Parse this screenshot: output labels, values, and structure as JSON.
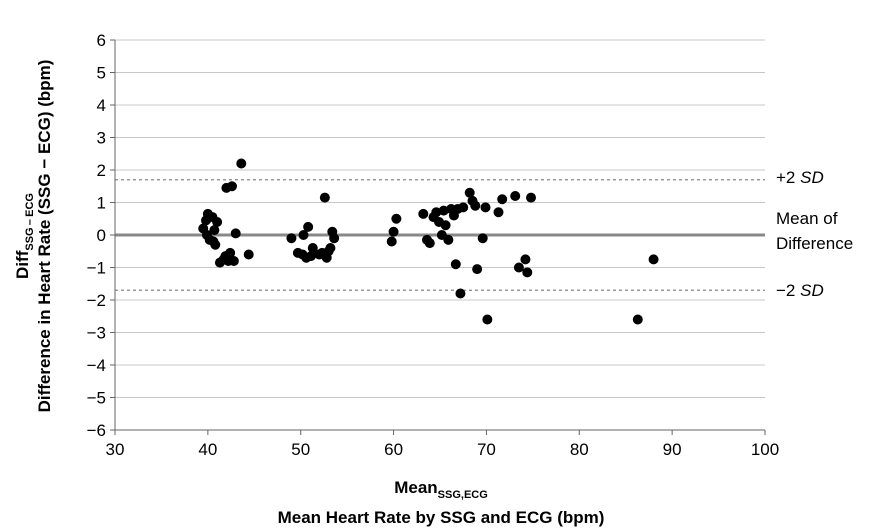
{
  "chart_data": {
    "type": "scatter",
    "xlim": [
      30,
      100
    ],
    "ylim": [
      -6,
      6
    ],
    "x_ticks": [
      "30",
      "40",
      "50",
      "60",
      "70",
      "80",
      "90",
      "100"
    ],
    "y_ticks": [
      "6",
      "5",
      "4",
      "3",
      "2",
      "1",
      "0",
      "−1",
      "−2",
      "−3",
      "−4",
      "−5",
      "−6"
    ],
    "x_title_main": "Mean",
    "x_title_sub": "SSG,ECG",
    "x_title_line2": "Mean Heart Rate by SSG and ECG (bpm)",
    "y_title_main": "Diff",
    "y_title_sub": "SSG – ECG",
    "y_title_line2": "Difference in Heart Rate (SSG − ECG) (bpm)",
    "grid": "horizontal",
    "mean_difference": 0.0,
    "upper_limit": 1.7,
    "lower_limit": -1.7,
    "upper_label_prefix": "+2 ",
    "upper_label_italic": "SD",
    "mean_label_line1": "Mean of",
    "mean_label_line2": "Difference",
    "lower_label_prefix": "−2 ",
    "lower_label_italic": "SD",
    "marker_color": "#000000",
    "limit_line_color": "#888888",
    "points": [
      [
        39.5,
        0.2
      ],
      [
        39.8,
        0.45
      ],
      [
        40.0,
        0.65
      ],
      [
        40.2,
        -0.15
      ],
      [
        40.5,
        0.55
      ],
      [
        40.7,
        0.15
      ],
      [
        40.8,
        -0.3
      ],
      [
        41.0,
        0.4
      ],
      [
        41.3,
        -0.85
      ],
      [
        41.7,
        -0.75
      ],
      [
        42.0,
        1.45
      ],
      [
        42.2,
        -0.8
      ],
      [
        42.4,
        -0.55
      ],
      [
        42.6,
        1.5
      ],
      [
        42.8,
        -0.8
      ],
      [
        43.0,
        0.05
      ],
      [
        43.6,
        2.2
      ],
      [
        44.4,
        -0.6
      ],
      [
        39.9,
        0.0
      ],
      [
        40.6,
        -0.2
      ],
      [
        41.9,
        -0.65
      ],
      [
        49.0,
        -0.1
      ],
      [
        49.7,
        -0.55
      ],
      [
        50.3,
        0.0
      ],
      [
        50.6,
        -0.7
      ],
      [
        50.8,
        0.25
      ],
      [
        51.1,
        -0.65
      ],
      [
        51.3,
        -0.4
      ],
      [
        52.0,
        -0.6
      ],
      [
        52.3,
        -0.55
      ],
      [
        52.6,
        1.15
      ],
      [
        52.8,
        -0.7
      ],
      [
        53.0,
        -0.5
      ],
      [
        53.2,
        -0.4
      ],
      [
        53.4,
        0.1
      ],
      [
        53.6,
        -0.1
      ],
      [
        50.2,
        -0.6
      ],
      [
        59.8,
        -0.2
      ],
      [
        60.0,
        0.1
      ],
      [
        60.3,
        0.5
      ],
      [
        63.2,
        0.65
      ],
      [
        63.6,
        -0.15
      ],
      [
        63.9,
        -0.25
      ],
      [
        64.3,
        0.55
      ],
      [
        64.6,
        0.7
      ],
      [
        64.9,
        0.4
      ],
      [
        65.2,
        0.0
      ],
      [
        65.4,
        0.75
      ],
      [
        65.6,
        0.3
      ],
      [
        65.9,
        -0.15
      ],
      [
        66.2,
        0.8
      ],
      [
        66.5,
        0.6
      ],
      [
        66.7,
        -0.9
      ],
      [
        66.9,
        0.8
      ],
      [
        67.2,
        -1.8
      ],
      [
        67.5,
        0.85
      ],
      [
        68.2,
        1.3
      ],
      [
        68.5,
        1.05
      ],
      [
        68.8,
        0.9
      ],
      [
        69.0,
        -1.05
      ],
      [
        69.6,
        -0.1
      ],
      [
        69.9,
        0.85
      ],
      [
        70.1,
        -2.6
      ],
      [
        71.3,
        0.7
      ],
      [
        71.7,
        1.1
      ],
      [
        73.1,
        1.2
      ],
      [
        73.5,
        -1.0
      ],
      [
        74.2,
        -0.75
      ],
      [
        74.4,
        -1.15
      ],
      [
        74.8,
        1.15
      ],
      [
        86.3,
        -2.6
      ],
      [
        88.0,
        -0.75
      ]
    ]
  }
}
